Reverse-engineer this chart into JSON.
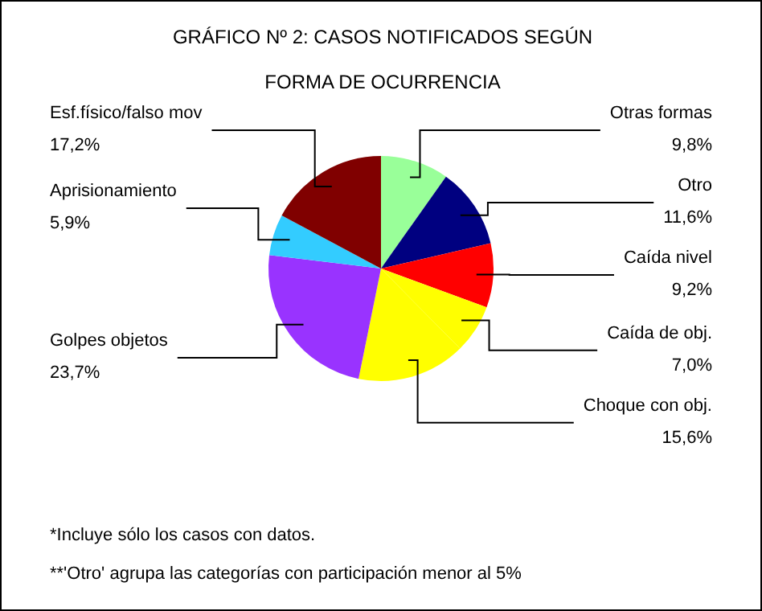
{
  "chart_data": {
    "type": "pie",
    "title": "GRÁFICO Nº 2: CASOS NOTIFICADOS SEGÚN FORMA DE OCURRENCIA",
    "categories": [
      "Otras formas",
      "Otro",
      "Caída nivel",
      "Caída de obj.",
      "Choque con obj.",
      "Golpes objetos",
      "Aprisionamiento",
      "Esf.físico/falso mov"
    ],
    "values": [
      9.8,
      11.6,
      9.2,
      7.0,
      15.6,
      23.7,
      5.9,
      17.2
    ],
    "colors": [
      "#99ff99",
      "#000080",
      "#ff0000",
      "#ffff00",
      "#ffff00",
      "#9933ff",
      "#33ccff",
      "#800000"
    ],
    "value_labels": [
      "9,8%",
      "11,6%",
      "9,2%",
      "7,0%",
      "15,6%",
      "23,7%",
      "5,9%",
      "17,2%"
    ],
    "annotations": [
      "*Incluye sólo los casos con datos.",
      "**'Otro' agrupa las categorías con participación menor al 5%"
    ]
  }
}
